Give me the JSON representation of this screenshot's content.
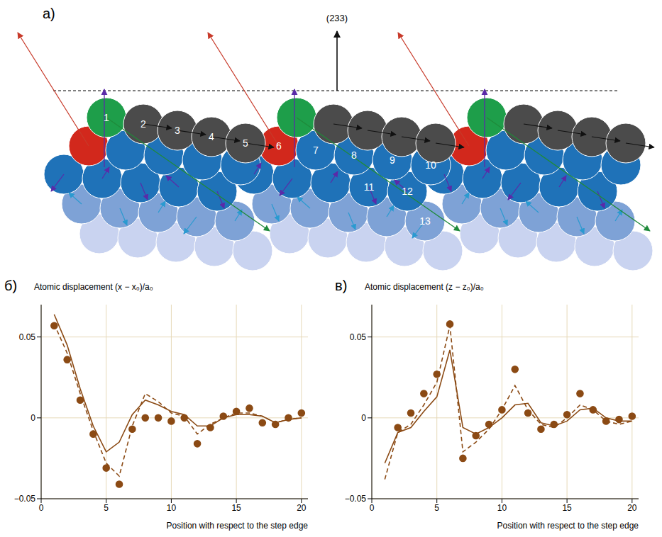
{
  "diagram": {
    "panel": "а)",
    "normal_label": "(233)",
    "atom_labels": [
      "1",
      "2",
      "3",
      "4",
      "5",
      "6",
      "7",
      "8",
      "9",
      "10",
      "11",
      "12",
      "13"
    ]
  },
  "chart_data": [
    {
      "type": "line",
      "panel": "б)",
      "y_label": "Atomic displacement (x − x₀)/a₀",
      "x_label": "Position with respect to the step edge",
      "x": [
        1,
        2,
        3,
        4,
        5,
        6,
        7,
        8,
        9,
        10,
        11,
        12,
        13,
        14,
        15,
        16,
        17,
        18,
        19,
        20
      ],
      "xlim": [
        0,
        20.5
      ],
      "xticks": [
        0,
        5,
        10,
        15,
        20
      ],
      "ylim": [
        -0.05,
        0.07
      ],
      "yticks": [
        {
          "value": -0.05,
          "label": "−0.05"
        },
        0,
        0.05
      ],
      "grid": true,
      "series": [
        {
          "type": "scatter",
          "marker": "o",
          "line_style": "none",
          "color": "#8b4a14",
          "values": [
            0.057,
            0.036,
            0.011,
            -0.01,
            -0.031,
            -0.041,
            -0.007,
            0.0,
            0.0,
            -0.002,
            0.0,
            -0.016,
            -0.006,
            0.001,
            0.004,
            0.006,
            -0.003,
            -0.004,
            0.0,
            0.003
          ]
        },
        {
          "type": "line",
          "line_style": "dashed",
          "color": "#8b4a14",
          "values": [
            0.058,
            0.04,
            0.015,
            -0.008,
            -0.028,
            -0.036,
            -0.005,
            0.015,
            0.01,
            0.003,
            0.001,
            -0.01,
            -0.004,
            0.0,
            0.003,
            0.003,
            0.001,
            -0.003,
            -0.001,
            0.0
          ]
        },
        {
          "type": "line",
          "line_style": "solid",
          "color": "#8b4a14",
          "values": [
            0.064,
            0.045,
            0.018,
            -0.005,
            -0.021,
            -0.015,
            0.002,
            0.011,
            0.008,
            0.004,
            0.002,
            -0.005,
            -0.005,
            0.0,
            0.002,
            0.002,
            0.001,
            -0.003,
            -0.001,
            0.0
          ]
        }
      ]
    },
    {
      "type": "line",
      "panel": "в)",
      "y_label": "Atomic displacement (z − z₀)/a₀",
      "x_label": "Position with respect to the step edge",
      "x": [
        1,
        2,
        3,
        4,
        5,
        6,
        7,
        8,
        9,
        10,
        11,
        12,
        13,
        14,
        15,
        16,
        17,
        18,
        19,
        20
      ],
      "xlim": [
        0,
        20.5
      ],
      "xticks": [
        0,
        5,
        10,
        15,
        20
      ],
      "ylim": [
        -0.05,
        0.07
      ],
      "yticks": [
        {
          "value": -0.05,
          "label": "−0.05"
        },
        0,
        0.05
      ],
      "grid": true,
      "series": [
        {
          "type": "scatter",
          "marker": "o",
          "line_style": "none",
          "color": "#8b4a14",
          "values": [
            null,
            -0.006,
            0.003,
            0.015,
            0.027,
            0.058,
            -0.025,
            -0.011,
            -0.004,
            0.005,
            0.03,
            0.003,
            -0.007,
            -0.004,
            0.002,
            0.015,
            0.005,
            -0.002,
            -0.001,
            0.001
          ]
        },
        {
          "type": "line",
          "line_style": "dashed",
          "color": "#8b4a14",
          "values": [
            -0.038,
            -0.009,
            -0.004,
            0.008,
            0.022,
            0.057,
            -0.021,
            -0.015,
            -0.007,
            0.005,
            0.02,
            0.005,
            -0.004,
            -0.006,
            0.0,
            0.008,
            0.005,
            -0.002,
            -0.004,
            -0.002
          ]
        },
        {
          "type": "line",
          "line_style": "solid",
          "color": "#8b4a14",
          "values": [
            -0.028,
            -0.009,
            -0.006,
            0.004,
            0.013,
            0.042,
            -0.006,
            -0.01,
            -0.006,
            0.0,
            0.008,
            0.009,
            -0.003,
            -0.005,
            -0.002,
            0.005,
            0.006,
            0.0,
            -0.002,
            -0.002
          ]
        }
      ]
    }
  ]
}
